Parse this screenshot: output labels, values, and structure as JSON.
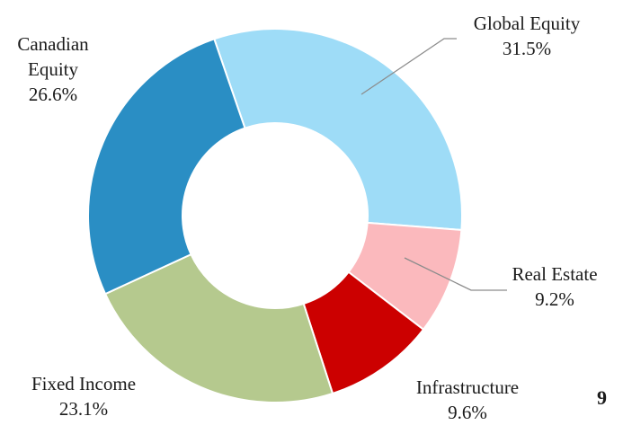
{
  "chart_data": {
    "type": "pie",
    "style": "donut",
    "categories": [
      "Global Equity",
      "Real Estate",
      "Infrastructure",
      "Fixed Income",
      "Canadian Equity"
    ],
    "values": [
      31.5,
      9.2,
      9.6,
      23.1,
      26.6
    ],
    "unit": "%",
    "colors": [
      "#9edcf7",
      "#fbb9bd",
      "#cc0000",
      "#b5c98e",
      "#2a8ec4"
    ],
    "start_angle_deg": -19,
    "direction": "clockwise",
    "labels": [
      {
        "name_lines": [
          "Global Equity"
        ],
        "value_text": "31.5%"
      },
      {
        "name_lines": [
          "Real Estate"
        ],
        "value_text": "9.2%"
      },
      {
        "name_lines": [
          "Infrastructure"
        ],
        "value_text": "9.6%"
      },
      {
        "name_lines": [
          "Fixed Income"
        ],
        "value_text": "23.1%"
      },
      {
        "name_lines": [
          "Canadian",
          "Equity"
        ],
        "value_text": "26.6%"
      }
    ],
    "leader_lines": [
      "Global Equity",
      "Real Estate"
    ],
    "legend": "none"
  },
  "page_number": "9"
}
